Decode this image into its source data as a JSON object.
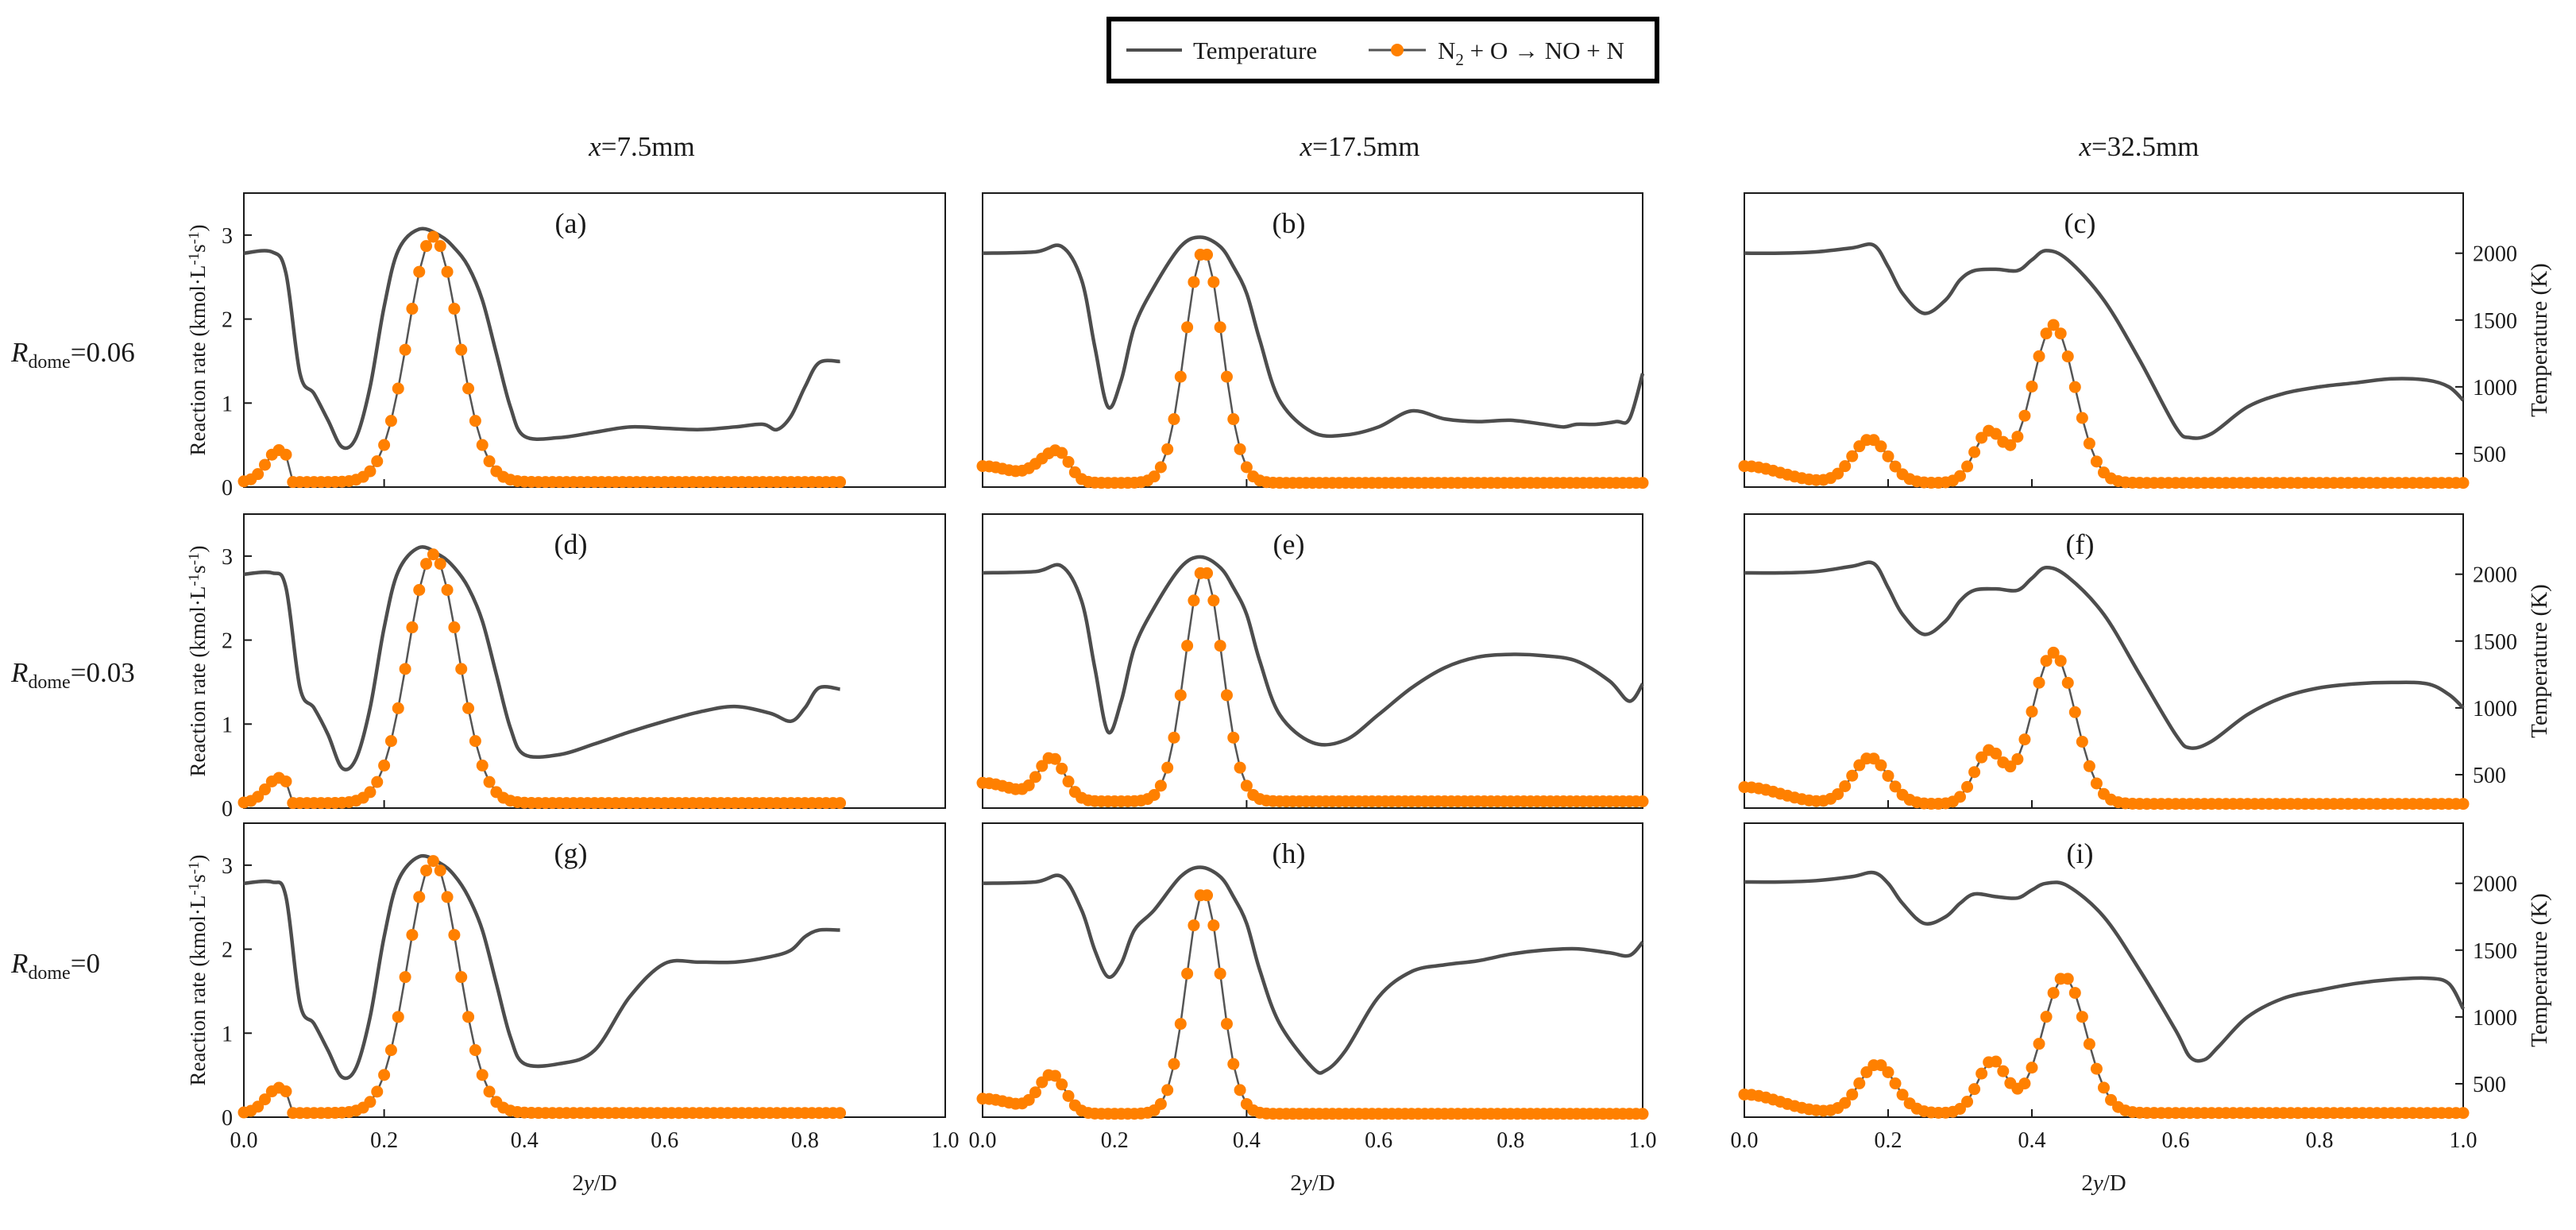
{
  "legend": {
    "temperature_label": "Temperature",
    "reaction_label_parts": [
      "N",
      "2",
      " + O → NO + N"
    ]
  },
  "column_headers": [
    {
      "italic": "x",
      "text": "=7.5mm"
    },
    {
      "italic": "x",
      "text": "=17.5mm"
    },
    {
      "italic": "x",
      "text": "=32.5mm"
    }
  ],
  "row_labels": [
    {
      "italic": "R",
      "sub": "dome",
      "text": "=0.06"
    },
    {
      "italic": "R",
      "sub": "dome",
      "text": "=0.03"
    },
    {
      "italic": "R",
      "sub": "dome",
      "text": "=0"
    }
  ],
  "axes": {
    "x_label_parts": [
      "2",
      "y",
      "/D"
    ],
    "left_label_parts": [
      "Reaction rate (kmol·L",
      "-1",
      "s",
      "-1",
      ")"
    ],
    "right_label": "Temperature (K)",
    "x_ticks": [
      "0.0",
      "0.2",
      "0.4",
      "0.6",
      "0.8",
      "1.0"
    ],
    "left_ticks": [
      "0",
      "1",
      "2",
      "3"
    ],
    "right_ticks": [
      "500",
      "1000",
      "1500",
      "2000"
    ]
  },
  "colors": {
    "temperature": "#4d4d4d",
    "reaction": "#ff8000",
    "reaction_line": "#555555",
    "axis": "#1a1a1a"
  },
  "chart_data": [
    {
      "panel": "(a)",
      "type": "line",
      "xlim": [
        0,
        1
      ],
      "ylim_left": [
        0,
        3.5
      ],
      "ylim_right": [
        250,
        2450
      ],
      "temperature": {
        "x": [
          0,
          0.04,
          0.06,
          0.08,
          0.1,
          0.12,
          0.14,
          0.16,
          0.18,
          0.2,
          0.22,
          0.25,
          0.28,
          0.3,
          0.32,
          0.34,
          0.36,
          0.38,
          0.4,
          0.45,
          0.5,
          0.55,
          0.6,
          0.65,
          0.7,
          0.74,
          0.76,
          0.78,
          0.8,
          0.82,
          0.85
        ],
        "y": [
          2000,
          2010,
          1850,
          1100,
          950,
          750,
          550,
          620,
          1000,
          1600,
          2020,
          2180,
          2130,
          2040,
          1900,
          1650,
          1250,
          850,
          630,
          620,
          660,
          700,
          690,
          680,
          700,
          720,
          680,
          780,
          1000,
          1180,
          1190
        ]
      },
      "reaction": {
        "x_range": [
          0,
          0.85
        ],
        "step": 0.01,
        "peaks": [
          {
            "center": 0.27,
            "height": 2.92,
            "width": 0.036
          },
          {
            "center": 0.05,
            "height": 0.38,
            "width": 0.018
          }
        ],
        "cutoff": 0.06,
        "baseline": 0.06
      }
    },
    {
      "panel": "(b)",
      "type": "line",
      "xlim": [
        0,
        1
      ],
      "ylim_left": [
        0,
        3.5
      ],
      "ylim_right": [
        250,
        2450
      ],
      "temperature": {
        "x": [
          0,
          0.08,
          0.12,
          0.15,
          0.17,
          0.19,
          0.21,
          0.23,
          0.26,
          0.3,
          0.33,
          0.36,
          0.38,
          0.4,
          0.42,
          0.45,
          0.5,
          0.55,
          0.6,
          0.65,
          0.7,
          0.75,
          0.8,
          0.85,
          0.88,
          0.9,
          0.93,
          0.96,
          0.98,
          1.0
        ],
        "y": [
          2000,
          2010,
          2050,
          1800,
          1300,
          850,
          1050,
          1450,
          1750,
          2050,
          2120,
          2050,
          1900,
          1700,
          1350,
          900,
          660,
          640,
          700,
          820,
          760,
          740,
          750,
          720,
          700,
          720,
          720,
          740,
          760,
          1100
        ]
      },
      "reaction": {
        "x_range": [
          0,
          1.0
        ],
        "step": 0.01,
        "peaks": [
          {
            "center": 0.335,
            "height": 2.76,
            "width": 0.028
          },
          {
            "center": 0.1,
            "height": 0.25,
            "width": 0.022
          },
          {
            "center": 0.12,
            "height": 0.18,
            "width": 0.015
          }
        ],
        "baseline": 0.05,
        "lead": {
          "x": 0.0,
          "height": 0.2
        }
      }
    },
    {
      "panel": "(c)",
      "type": "line",
      "xlim": [
        0,
        1
      ],
      "ylim_left": [
        0,
        3.5
      ],
      "ylim_right": [
        250,
        2450
      ],
      "temperature": {
        "x": [
          0,
          0.05,
          0.1,
          0.15,
          0.18,
          0.2,
          0.22,
          0.25,
          0.28,
          0.3,
          0.32,
          0.35,
          0.38,
          0.4,
          0.42,
          0.45,
          0.5,
          0.55,
          0.6,
          0.62,
          0.65,
          0.7,
          0.75,
          0.8,
          0.85,
          0.9,
          0.95,
          0.98,
          1.0
        ],
        "y": [
          2000,
          2000,
          2010,
          2040,
          2060,
          1900,
          1700,
          1550,
          1650,
          1800,
          1870,
          1880,
          1870,
          1950,
          2020,
          1950,
          1650,
          1200,
          700,
          620,
          650,
          850,
          950,
          1000,
          1030,
          1060,
          1050,
          1000,
          900
        ]
      },
      "reaction": {
        "x_range": [
          0,
          1.0
        ],
        "step": 0.01,
        "peaks": [
          {
            "center": 0.43,
            "height": 1.88,
            "width": 0.03
          },
          {
            "center": 0.34,
            "height": 0.6,
            "width": 0.02
          },
          {
            "center": 0.175,
            "height": 0.52,
            "width": 0.025
          }
        ],
        "baseline": 0.05,
        "lead": {
          "x": 0.0,
          "height": 0.2
        }
      }
    },
    {
      "panel": "(d)",
      "type": "line",
      "xlim": [
        0,
        1
      ],
      "ylim_left": [
        0,
        3.5
      ],
      "ylim_right": [
        250,
        2450
      ],
      "temperature": {
        "x": [
          0,
          0.04,
          0.06,
          0.08,
          0.1,
          0.12,
          0.14,
          0.16,
          0.18,
          0.2,
          0.22,
          0.25,
          0.28,
          0.3,
          0.32,
          0.34,
          0.36,
          0.38,
          0.4,
          0.45,
          0.5,
          0.55,
          0.6,
          0.65,
          0.7,
          0.75,
          0.78,
          0.8,
          0.82,
          0.85
        ],
        "y": [
          2000,
          2010,
          1900,
          1150,
          1000,
          800,
          550,
          620,
          1000,
          1600,
          2020,
          2200,
          2140,
          2050,
          1900,
          1650,
          1250,
          850,
          650,
          650,
          730,
          820,
          900,
          970,
          1010,
          960,
          900,
          1000,
          1150,
          1140
        ]
      },
      "reaction": {
        "x_range": [
          0,
          0.85
        ],
        "step": 0.01,
        "peaks": [
          {
            "center": 0.27,
            "height": 2.96,
            "width": 0.036
          },
          {
            "center": 0.05,
            "height": 0.3,
            "width": 0.018
          }
        ],
        "cutoff": 0.06,
        "baseline": 0.06
      }
    },
    {
      "panel": "(e)",
      "type": "line",
      "xlim": [
        0,
        1
      ],
      "ylim_left": [
        0,
        3.5
      ],
      "ylim_right": [
        250,
        2450
      ],
      "temperature": {
        "x": [
          0,
          0.08,
          0.12,
          0.15,
          0.17,
          0.19,
          0.21,
          0.23,
          0.26,
          0.3,
          0.33,
          0.36,
          0.38,
          0.4,
          0.42,
          0.45,
          0.5,
          0.55,
          0.6,
          0.65,
          0.7,
          0.75,
          0.8,
          0.85,
          0.9,
          0.95,
          0.98,
          1.0
        ],
        "y": [
          2010,
          2020,
          2060,
          1800,
          1300,
          820,
          1050,
          1450,
          1750,
          2050,
          2130,
          2050,
          1900,
          1700,
          1350,
          950,
          740,
          760,
          950,
          1150,
          1300,
          1380,
          1400,
          1390,
          1350,
          1200,
          1050,
          1180
        ]
      },
      "reaction": {
        "x_range": [
          0,
          1.0
        ],
        "step": 0.01,
        "peaks": [
          {
            "center": 0.335,
            "height": 2.76,
            "width": 0.028
          },
          {
            "center": 0.105,
            "height": 0.5,
            "width": 0.02
          }
        ],
        "baseline": 0.08,
        "lead": {
          "x": 0.0,
          "height": 0.22
        }
      }
    },
    {
      "panel": "(f)",
      "type": "line",
      "xlim": [
        0,
        1
      ],
      "ylim_left": [
        0,
        3.5
      ],
      "ylim_right": [
        250,
        2450
      ],
      "temperature": {
        "x": [
          0,
          0.05,
          0.1,
          0.15,
          0.18,
          0.2,
          0.22,
          0.25,
          0.28,
          0.3,
          0.32,
          0.35,
          0.38,
          0.4,
          0.42,
          0.45,
          0.5,
          0.55,
          0.6,
          0.62,
          0.65,
          0.7,
          0.75,
          0.8,
          0.85,
          0.9,
          0.95,
          0.98,
          1.0
        ],
        "y": [
          2010,
          2010,
          2020,
          2060,
          2080,
          1900,
          1700,
          1550,
          1650,
          1800,
          1880,
          1890,
          1880,
          1970,
          2050,
          1980,
          1700,
          1250,
          800,
          700,
          750,
          950,
          1080,
          1150,
          1180,
          1190,
          1180,
          1100,
          1000
        ]
      },
      "reaction": {
        "x_range": [
          0,
          1.0
        ],
        "step": 0.01,
        "peaks": [
          {
            "center": 0.43,
            "height": 1.8,
            "width": 0.03
          },
          {
            "center": 0.34,
            "height": 0.62,
            "width": 0.02
          },
          {
            "center": 0.175,
            "height": 0.55,
            "width": 0.025
          }
        ],
        "baseline": 0.05,
        "lead": {
          "x": 0.0,
          "height": 0.2
        }
      }
    },
    {
      "panel": "(g)",
      "type": "line",
      "xlim": [
        0,
        1
      ],
      "ylim_left": [
        0,
        3.5
      ],
      "ylim_right": [
        250,
        2450
      ],
      "temperature": {
        "x": [
          0,
          0.04,
          0.06,
          0.08,
          0.1,
          0.12,
          0.14,
          0.16,
          0.18,
          0.2,
          0.22,
          0.25,
          0.28,
          0.3,
          0.32,
          0.34,
          0.36,
          0.38,
          0.4,
          0.45,
          0.5,
          0.55,
          0.6,
          0.65,
          0.7,
          0.75,
          0.78,
          0.8,
          0.82,
          0.85
        ],
        "y": [
          2000,
          2010,
          1900,
          1100,
          950,
          750,
          550,
          620,
          1000,
          1600,
          2020,
          2200,
          2150,
          2060,
          1900,
          1650,
          1250,
          850,
          650,
          650,
          750,
          1150,
          1400,
          1410,
          1410,
          1450,
          1500,
          1600,
          1650,
          1650
        ]
      },
      "reaction": {
        "x_range": [
          0,
          0.85
        ],
        "step": 0.01,
        "peaks": [
          {
            "center": 0.27,
            "height": 3.0,
            "width": 0.036
          },
          {
            "center": 0.05,
            "height": 0.3,
            "width": 0.018
          }
        ],
        "cutoff": 0.06,
        "baseline": 0.05
      }
    },
    {
      "panel": "(h)",
      "type": "line",
      "xlim": [
        0,
        1
      ],
      "ylim_left": [
        0,
        3.5
      ],
      "ylim_right": [
        250,
        2450
      ],
      "temperature": {
        "x": [
          0,
          0.08,
          0.12,
          0.15,
          0.17,
          0.19,
          0.21,
          0.23,
          0.26,
          0.3,
          0.33,
          0.36,
          0.38,
          0.4,
          0.42,
          0.45,
          0.5,
          0.52,
          0.55,
          0.6,
          0.65,
          0.7,
          0.75,
          0.8,
          0.85,
          0.9,
          0.95,
          0.98,
          1.0
        ],
        "y": [
          2000,
          2010,
          2050,
          1800,
          1500,
          1300,
          1400,
          1650,
          1800,
          2050,
          2120,
          2050,
          1900,
          1700,
          1350,
          950,
          620,
          600,
          750,
          1150,
          1340,
          1390,
          1420,
          1470,
          1500,
          1510,
          1480,
          1460,
          1560
        ]
      },
      "reaction": {
        "x_range": [
          0,
          1.0
        ],
        "step": 0.01,
        "peaks": [
          {
            "center": 0.335,
            "height": 2.65,
            "width": 0.026
          },
          {
            "center": 0.105,
            "height": 0.45,
            "width": 0.02
          }
        ],
        "baseline": 0.04,
        "lead": {
          "x": 0.0,
          "height": 0.18
        }
      }
    },
    {
      "panel": "(i)",
      "type": "line",
      "xlim": [
        0,
        1
      ],
      "ylim_left": [
        0,
        3.5
      ],
      "ylim_right": [
        250,
        2450
      ],
      "temperature": {
        "x": [
          0,
          0.05,
          0.1,
          0.15,
          0.18,
          0.2,
          0.22,
          0.25,
          0.28,
          0.3,
          0.32,
          0.35,
          0.38,
          0.4,
          0.42,
          0.45,
          0.5,
          0.55,
          0.6,
          0.62,
          0.64,
          0.66,
          0.7,
          0.75,
          0.8,
          0.85,
          0.9,
          0.95,
          0.98,
          1.0
        ],
        "y": [
          2010,
          2010,
          2020,
          2050,
          2080,
          2000,
          1850,
          1700,
          1750,
          1850,
          1920,
          1900,
          1890,
          1950,
          2000,
          1980,
          1750,
          1350,
          900,
          700,
          680,
          780,
          1000,
          1140,
          1200,
          1250,
          1280,
          1290,
          1250,
          1060
        ]
      },
      "reaction": {
        "x_range": [
          0,
          1.0
        ],
        "step": 0.01,
        "peaks": [
          {
            "center": 0.445,
            "height": 1.62,
            "width": 0.03
          },
          {
            "center": 0.345,
            "height": 0.62,
            "width": 0.02
          },
          {
            "center": 0.185,
            "height": 0.58,
            "width": 0.025
          }
        ],
        "baseline": 0.05,
        "lead": {
          "x": 0.0,
          "height": 0.22
        }
      }
    }
  ]
}
